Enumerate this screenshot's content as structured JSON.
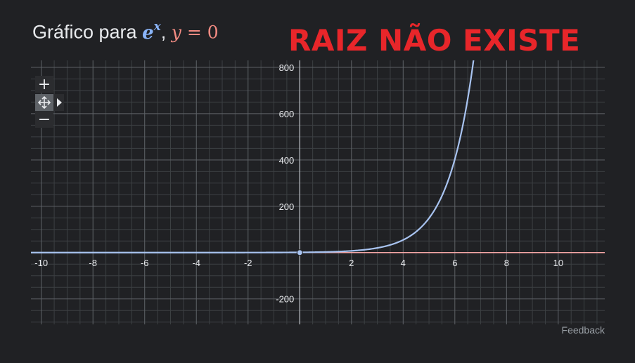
{
  "title": {
    "prefix": "Gráfico para ",
    "func_base": "e",
    "func_exp": "x",
    "separator": ", ",
    "eq_left": "y",
    "eq_sign": " = ",
    "eq_right": "0"
  },
  "overlay_text": "RAIZ NÃO EXISTE",
  "feedback_label": "Feedback",
  "controls": {
    "zoom_in": "+",
    "zoom_out": "−"
  },
  "colors": {
    "background": "#202124",
    "curve": "#a8c3f0",
    "zero_line": "#f4a6a6",
    "overlay": "#e8262a",
    "axis": "#bdc1c6"
  },
  "chart_data": {
    "type": "line",
    "title": "Gráfico para e^x, y = 0",
    "xlim": [
      -10.4,
      11.8
    ],
    "ylim": [
      -310,
      830
    ],
    "x_ticks": [
      -10,
      -8,
      -6,
      -4,
      -2,
      2,
      4,
      6,
      8,
      10
    ],
    "y_ticks": [
      -200,
      200,
      400,
      600,
      800
    ],
    "grid": true,
    "series": [
      {
        "name": "e^x",
        "function": "exp(x)",
        "color": "#a8c3f0"
      },
      {
        "name": "y = 0",
        "function": "0",
        "color": "#f4a6a6"
      }
    ],
    "highlighted_point": {
      "x": 0,
      "y": 0
    }
  }
}
